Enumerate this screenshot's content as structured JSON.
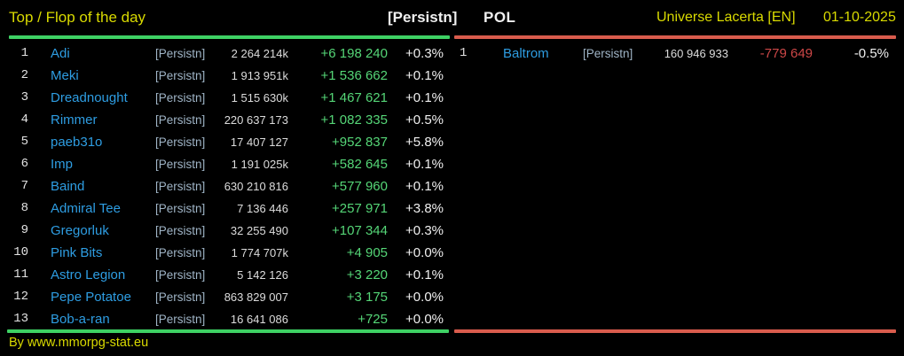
{
  "header": {
    "title": "Top / Flop of the day",
    "alliance_tag": "[Persistn]",
    "country": "POL",
    "universe": "Universe Lacerta [EN]",
    "date": "01-10-2025"
  },
  "colors": {
    "background": "#000000",
    "yellow": "#d9da00",
    "white": "#f0f0f0",
    "rank_white": "#e2e2e2",
    "score_white": "#dcdcdc",
    "blue": "#2e9de2",
    "tag_blue": "#9fb4c6",
    "green_text": "#55d677",
    "green_line": "#3ed164",
    "red_text": "#cd4747",
    "red_line": "#d95c4d"
  },
  "top_table": {
    "rows": [
      {
        "rank": "1",
        "name": "Adi",
        "tag": "[Persistn]",
        "score": "2 264 214k",
        "change": "+6 198 240",
        "pct": "+0.3%"
      },
      {
        "rank": "2",
        "name": "Meki",
        "tag": "[Persistn]",
        "score": "1 913 951k",
        "change": "+1 536 662",
        "pct": "+0.1%"
      },
      {
        "rank": "3",
        "name": "Dreadnought",
        "tag": "[Persistn]",
        "score": "1 515 630k",
        "change": "+1 467 621",
        "pct": "+0.1%"
      },
      {
        "rank": "4",
        "name": "Rimmer",
        "tag": "[Persistn]",
        "score": "220 637 173",
        "change": "+1 082 335",
        "pct": "+0.5%"
      },
      {
        "rank": "5",
        "name": "paeb31o",
        "tag": "[Persistn]",
        "score": "17 407 127",
        "change": "+952 837",
        "pct": "+5.8%"
      },
      {
        "rank": "6",
        "name": "Imp",
        "tag": "[Persistn]",
        "score": "1 191 025k",
        "change": "+582 645",
        "pct": "+0.1%"
      },
      {
        "rank": "7",
        "name": "Baind",
        "tag": "[Persistn]",
        "score": "630 210 816",
        "change": "+577 960",
        "pct": "+0.1%"
      },
      {
        "rank": "8",
        "name": "Admiral Tee",
        "tag": "[Persistn]",
        "score": "7 136 446",
        "change": "+257 971",
        "pct": "+3.8%"
      },
      {
        "rank": "9",
        "name": "Gregorluk",
        "tag": "[Persistn]",
        "score": "32 255 490",
        "change": "+107 344",
        "pct": "+0.3%"
      },
      {
        "rank": "10",
        "name": "Pink Bits",
        "tag": "[Persistn]",
        "score": "1 774 707k",
        "change": "+4 905",
        "pct": "+0.0%"
      },
      {
        "rank": "11",
        "name": "Astro Legion",
        "tag": "[Persistn]",
        "score": "5 142 126",
        "change": "+3 220",
        "pct": "+0.1%"
      },
      {
        "rank": "12",
        "name": "Pepe Potatoe",
        "tag": "[Persistn]",
        "score": "863 829 007",
        "change": "+3 175",
        "pct": "+0.0%"
      },
      {
        "rank": "13",
        "name": "Bob-a-ran",
        "tag": "[Persistn]",
        "score": "16 641 086",
        "change": "+725",
        "pct": "+0.0%"
      }
    ]
  },
  "flop_table": {
    "rows": [
      {
        "rank": "1",
        "name": "Baltrom",
        "tag": "[Persistn]",
        "score": "160 946 933",
        "change": "-779 649",
        "pct": "-0.5%"
      }
    ]
  },
  "footer": {
    "credit": "By www.mmorpg-stat.eu"
  }
}
